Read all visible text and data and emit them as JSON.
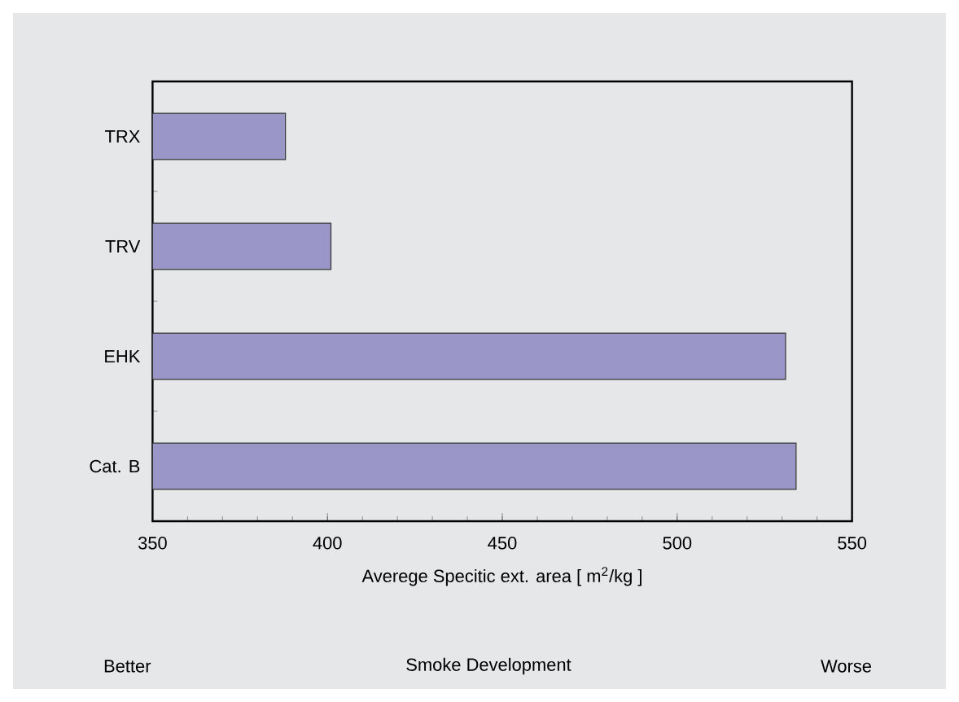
{
  "chart_data": {
    "type": "bar",
    "orientation": "horizontal",
    "categories": [
      "TRX",
      "TRV",
      "EHK",
      "Cat. B"
    ],
    "values": [
      388,
      401,
      531,
      534
    ],
    "color": "#9a96c8",
    "xlim": [
      350,
      550
    ],
    "xticks": [
      350,
      400,
      450,
      500,
      550
    ],
    "xlabel": "Averege Specitic ext. area [ m$^{2}$/kg ]",
    "annotations": [
      "Better",
      "Smoke Development",
      "Worse"
    ]
  }
}
